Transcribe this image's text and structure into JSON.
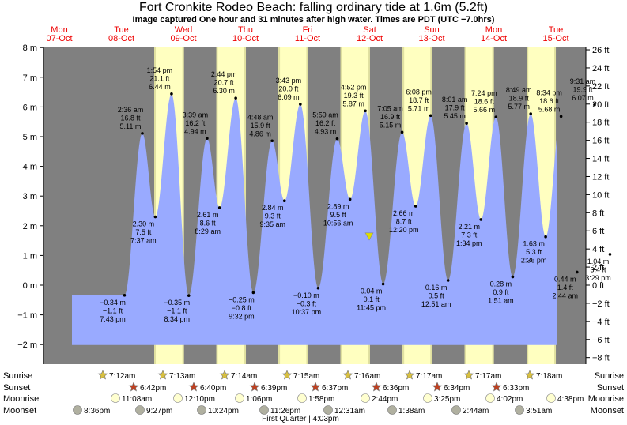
{
  "title": "Fort Cronkite Rodeo Beach: falling  ordinary tide at 1.6m (5.2ft)",
  "subtitle": "Image captured One hour and 31 minutes after high water. Times are PDT (UTC −7.0hrs)",
  "colors": {
    "night": "#808080",
    "day": "#ffffc0",
    "day_stripe": "#e0e0a0",
    "water": "#99aaff",
    "day_label": "#ee0000",
    "marker": "#dddd00"
  },
  "chart_data": {
    "type": "area",
    "x_unit": "hours from 07-Oct 00:00 PDT",
    "y_left_label": "m",
    "y_right_label": "ft",
    "ylim_m": [
      -2.3,
      8.5
    ],
    "y_ticks_m": [
      8,
      7,
      6,
      5,
      4,
      3,
      2,
      1,
      0,
      -1,
      -2
    ],
    "y_tick_labels_m": [
      "8 m",
      "7 m",
      "6 m",
      "5 m",
      "4 m",
      "3 m",
      "2 m",
      "1 m",
      "0 m",
      "−1 m",
      "−2 m"
    ],
    "y_ticks_ft": [
      26,
      24,
      22,
      20,
      18,
      16,
      14,
      12,
      10,
      8,
      6,
      4,
      2,
      0,
      -2,
      -4,
      -6,
      -8
    ],
    "y_tick_labels_ft": [
      "26 ft",
      "24 ft",
      "22 ft",
      "20 ft",
      "18 ft",
      "16 ft",
      "14 ft",
      "12 ft",
      "10 ft",
      "8 ft",
      "6 ft",
      "4 ft",
      "2 ft",
      "0 ft",
      "−2 ft",
      "−4 ft",
      "−6 ft",
      "−8 ft"
    ],
    "days": [
      {
        "dow": "Mon",
        "date": "07-Oct"
      },
      {
        "dow": "Tue",
        "date": "08-Oct"
      },
      {
        "dow": "Wed",
        "date": "09-Oct"
      },
      {
        "dow": "Thu",
        "date": "10-Oct"
      },
      {
        "dow": "Fri",
        "date": "11-Oct"
      },
      {
        "dow": "Sat",
        "date": "12-Oct"
      },
      {
        "dow": "Sun",
        "date": "13-Oct"
      },
      {
        "dow": "Mon",
        "date": "14-Oct"
      },
      {
        "dow": "Tue",
        "date": "15-Oct"
      }
    ],
    "daylight": [
      {
        "rise": 31.2,
        "set": 42.7
      },
      {
        "rise": 55.2,
        "set": 66.67
      },
      {
        "rise": 79.23,
        "set": 90.65
      },
      {
        "rise": 103.25,
        "set": 114.62
      },
      {
        "rise": 127.27,
        "set": 138.6
      },
      {
        "rise": 151.28,
        "set": 162.57
      },
      {
        "rise": 175.28,
        "set": 186.55
      }
    ],
    "tide_extremes": [
      {
        "t": 19.72,
        "h": -0.34,
        "label": [
          "−0.34 m",
          "−1.1 ft",
          "7:43 pm"
        ]
      },
      {
        "t": 26.6,
        "h": 5.11,
        "label": [
          "2:36 am",
          "16.8 ft",
          "5.11 m"
        ]
      },
      {
        "t": 31.62,
        "h": 2.3,
        "label": [
          "2.30 m",
          "7.5 ft",
          "7:37 am"
        ]
      },
      {
        "t": 37.9,
        "h": 6.44,
        "label": [
          "1:54 pm",
          "21.1 ft",
          "6.44 m"
        ]
      },
      {
        "t": 44.57,
        "h": -0.35,
        "label": [
          "−0.35 m",
          "−1.1 ft",
          "8:34 pm"
        ]
      },
      {
        "t": 51.65,
        "h": 4.94,
        "label": [
          "3:39 am",
          "16.2 ft",
          "4.94 m"
        ]
      },
      {
        "t": 56.48,
        "h": 2.61,
        "label": [
          "2.61 m",
          "8.6 ft",
          "8:29 am"
        ]
      },
      {
        "t": 62.73,
        "h": 6.3,
        "label": [
          "2:44 pm",
          "20.7 ft",
          "6.30 m"
        ]
      },
      {
        "t": 69.53,
        "h": -0.25,
        "label": [
          "−0.25 m",
          "−0.8 ft",
          "9:32 pm"
        ]
      },
      {
        "t": 76.8,
        "h": 4.86,
        "label": [
          "4:48 am",
          "15.9 ft",
          "4.86 m"
        ]
      },
      {
        "t": 81.58,
        "h": 2.84,
        "label": [
          "2.84 m",
          "9.3 ft",
          "9:35 am"
        ]
      },
      {
        "t": 87.72,
        "h": 6.09,
        "label": [
          "3:43 pm",
          "20.0 ft",
          "6.09 m"
        ]
      },
      {
        "t": 94.62,
        "h": -0.1,
        "label": [
          "−0.10 m",
          "−0.3 ft",
          "10:37 pm"
        ]
      },
      {
        "t": 101.98,
        "h": 4.93,
        "label": [
          "5:59 am",
          "16.2 ft",
          "4.93 m"
        ]
      },
      {
        "t": 106.93,
        "h": 2.89,
        "label": [
          "2.89 m",
          "9.5 ft",
          "10:56 am"
        ]
      },
      {
        "t": 112.87,
        "h": 5.87,
        "label": [
          "4:52 pm",
          "19.3 ft",
          "5.87 m"
        ]
      },
      {
        "t": 119.75,
        "h": 0.04,
        "label": [
          "0.04 m",
          "0.1 ft",
          "11:45 pm"
        ]
      },
      {
        "t": 127.08,
        "h": 5.15,
        "label": [
          "7:05 am",
          "16.9 ft",
          "5.15 m"
        ]
      },
      {
        "t": 132.33,
        "h": 2.66,
        "label": [
          "2.66 m",
          "8.7 ft",
          "12:20 pm"
        ]
      },
      {
        "t": 138.13,
        "h": 5.71,
        "label": [
          "6:08 pm",
          "18.7 ft",
          "5.71 m"
        ]
      },
      {
        "t": 144.85,
        "h": 0.16,
        "label": [
          "0.16 m",
          "0.5 ft",
          "12:51 am"
        ]
      },
      {
        "t": 152.02,
        "h": 5.45,
        "label": [
          "8:01 am",
          "17.9 ft",
          "5.45 m"
        ]
      },
      {
        "t": 157.57,
        "h": 2.21,
        "label": [
          "2.21 m",
          "7.3 ft",
          "1:34 pm"
        ]
      },
      {
        "t": 163.4,
        "h": 5.66,
        "label": [
          "7:24 pm",
          "18.6 ft",
          "5.66 m"
        ]
      },
      {
        "t": 169.85,
        "h": 0.28,
        "label": [
          "0.28 m",
          "0.9 ft",
          "1:51 am"
        ]
      },
      {
        "t": 176.82,
        "h": 5.77,
        "label": [
          "8:49 am",
          "18.9 ft",
          "5.77 m"
        ]
      },
      {
        "t": 182.6,
        "h": 1.63,
        "label": [
          "1.63 m",
          "5.3 ft",
          "2:36 pm"
        ]
      },
      {
        "t": 188.57,
        "h": 5.68,
        "label": [
          "8:34 pm",
          "18.6 ft",
          "5.68 m"
        ]
      },
      {
        "t": 194.73,
        "h": 0.44,
        "label": [
          "0.44 m",
          "1.4 ft",
          "2:44 am"
        ]
      },
      {
        "t": 201.52,
        "h": 6.07,
        "label": [
          "9:31 am",
          "19.9 ft",
          "6.07 m"
        ]
      },
      {
        "t": 207.48,
        "h": 1.04,
        "label": [
          "1.04 m",
          "3.4 ft",
          "3:29 pm"
        ]
      }
    ],
    "current": {
      "t": 114.38,
      "h": 1.6
    },
    "sunrise_times": [
      "7:12am",
      "7:13am",
      "7:14am",
      "7:15am",
      "7:16am",
      "7:17am",
      "7:17am",
      "7:18am"
    ],
    "sunset_times": [
      "6:42pm",
      "6:40pm",
      "6:39pm",
      "6:37pm",
      "6:36pm",
      "6:34pm",
      "6:33pm"
    ],
    "moonrise_times": [
      "11:08am",
      "12:10pm",
      "1:06pm",
      "1:58pm",
      "2:44pm",
      "3:25pm",
      "4:02pm",
      "4:38pm"
    ],
    "moonset_times": [
      "8:36pm",
      "9:27pm",
      "10:24pm",
      "11:26pm",
      "12:31am",
      "1:38am",
      "2:44am",
      "3:51am"
    ],
    "moon_phase": "First Quarter | 4:03pm"
  },
  "rows": {
    "sunrise": "Sunrise",
    "sunset": "Sunset",
    "moonrise": "Moonrise",
    "moonset": "Moonset"
  }
}
